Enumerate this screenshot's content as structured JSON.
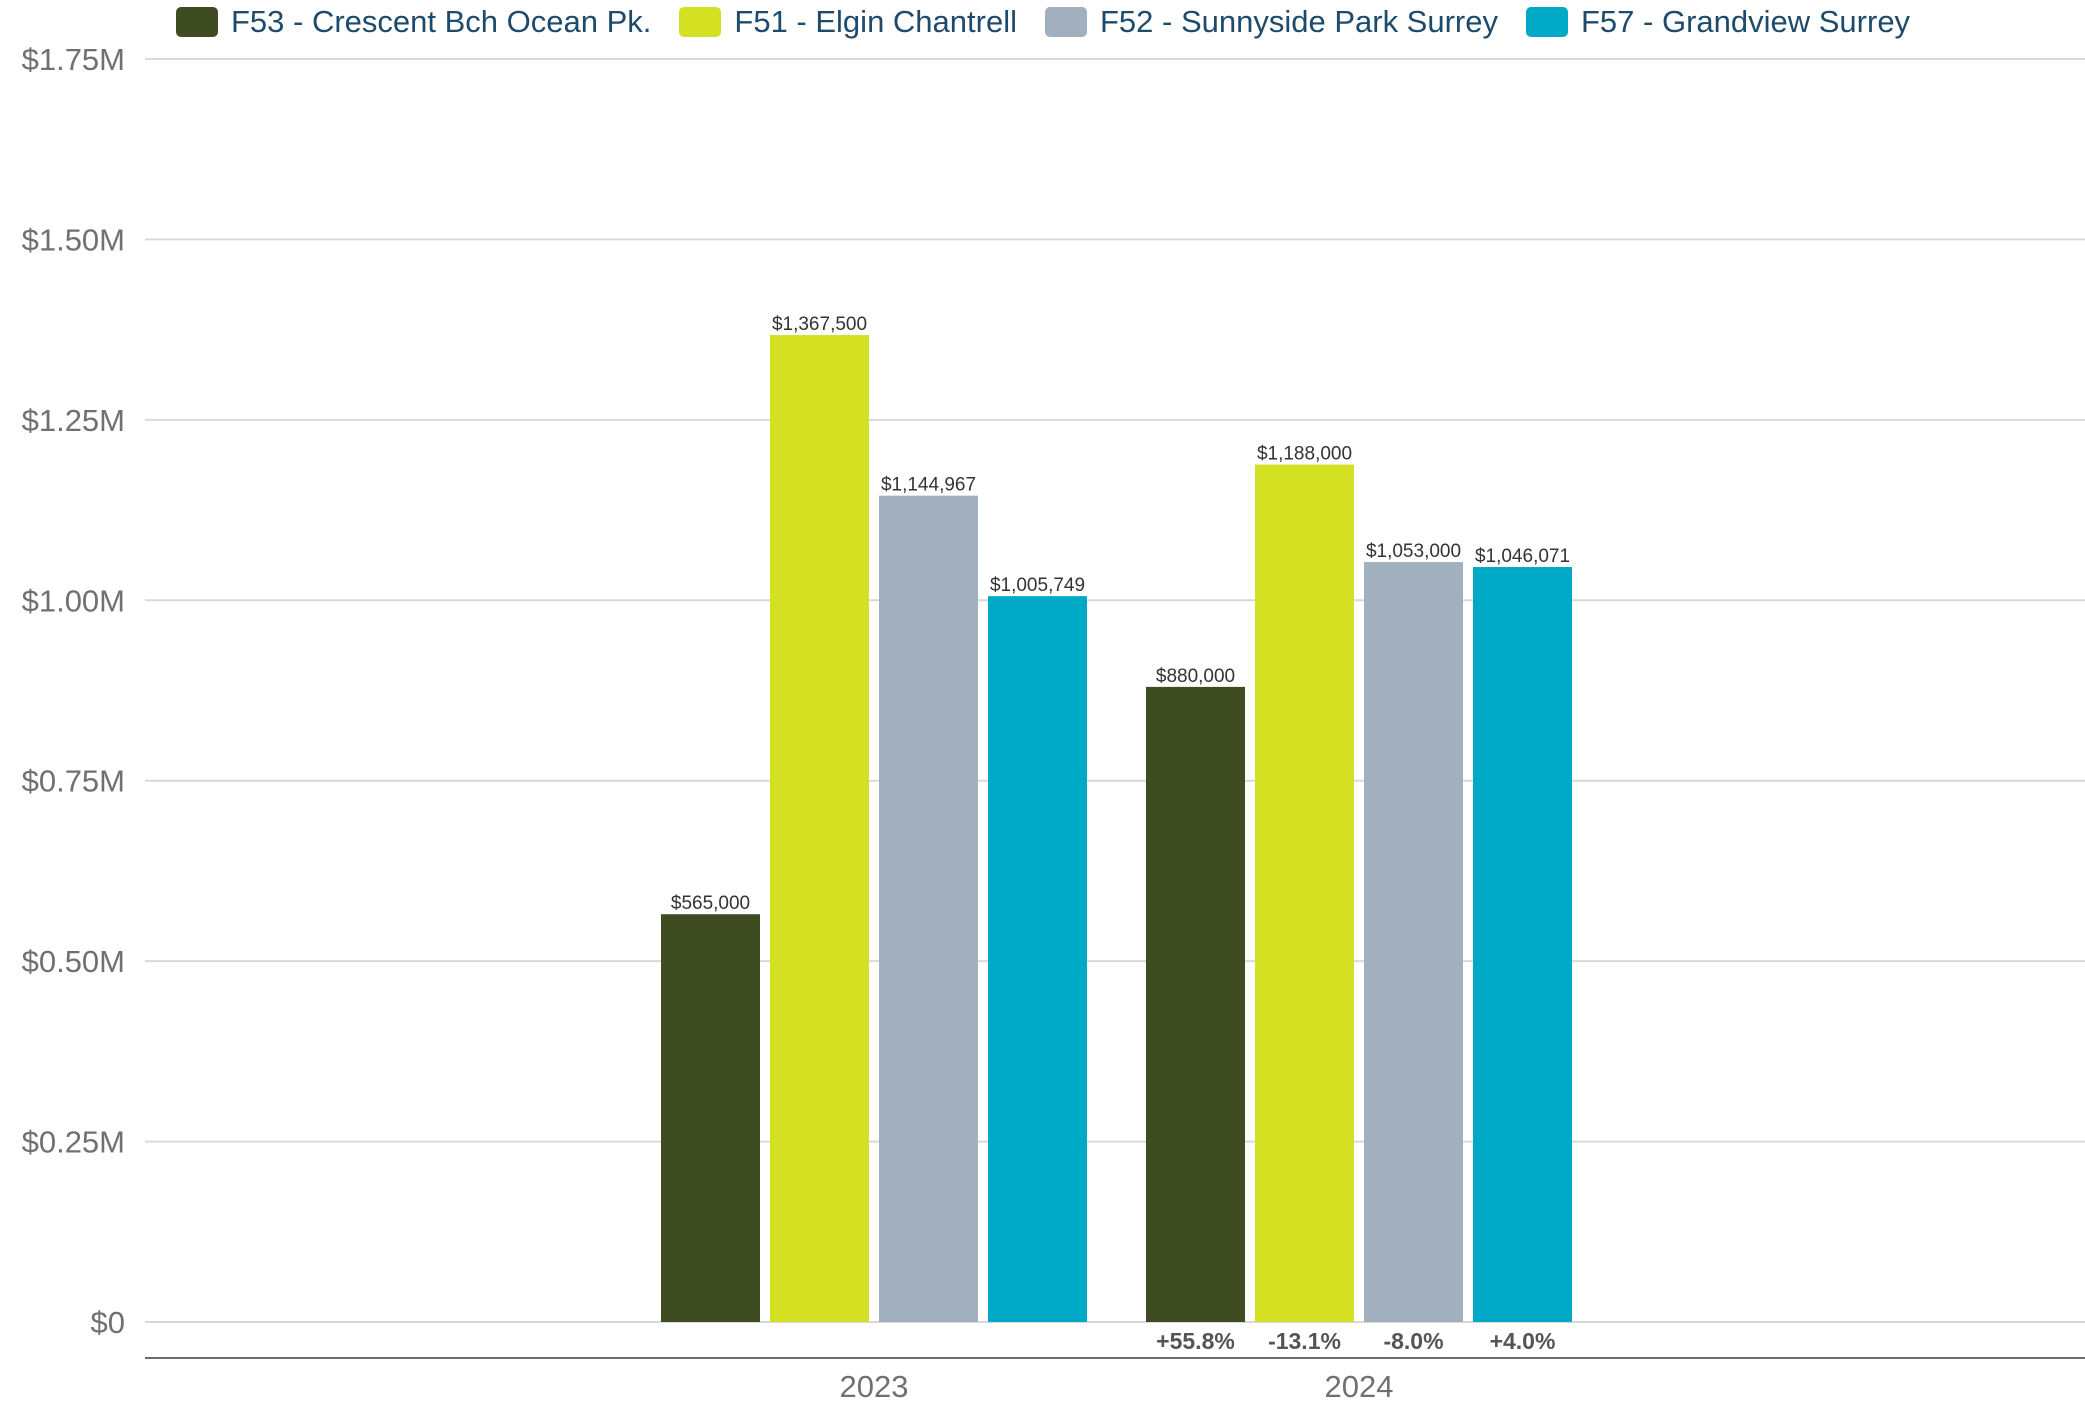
{
  "chart_data": {
    "type": "bar",
    "categories": [
      "2023",
      "2024"
    ],
    "ylim": [
      0,
      1750000
    ],
    "yticks": [
      {
        "value": 0,
        "label": "$0"
      },
      {
        "value": 250000,
        "label": "$0.25M"
      },
      {
        "value": 500000,
        "label": "$0.50M"
      },
      {
        "value": 750000,
        "label": "$0.75M"
      },
      {
        "value": 1000000,
        "label": "$1.00M"
      },
      {
        "value": 1250000,
        "label": "$1.25M"
      },
      {
        "value": 1500000,
        "label": "$1.50M"
      },
      {
        "value": 1750000,
        "label": "$1.75M"
      }
    ],
    "grid": true,
    "legend_position": "top",
    "series": [
      {
        "name": "F53 - Crescent Bch Ocean Pk.",
        "color": "#3f4b21",
        "values": [
          565000,
          880000
        ],
        "labels": [
          "$565,000",
          "$880,000"
        ],
        "change": "+55.8%"
      },
      {
        "name": "F51 - Elgin Chantrell",
        "color": "#d4e122",
        "values": [
          1367500,
          1188000
        ],
        "labels": [
          "$1,367,500",
          "$1,188,000"
        ],
        "change": "-13.1%"
      },
      {
        "name": "F52 - Sunnyside Park Surrey",
        "color": "#a2afbe",
        "values": [
          1144967,
          1053000
        ],
        "labels": [
          "$1,144,967",
          "$1,053,000"
        ],
        "change": "-8.0%"
      },
      {
        "name": "F57 - Grandview Surrey",
        "color": "#00a9c6",
        "values": [
          1005749,
          1046071
        ],
        "labels": [
          "$1,005,749",
          "$1,046,071"
        ],
        "change": "+4.0%"
      }
    ]
  }
}
